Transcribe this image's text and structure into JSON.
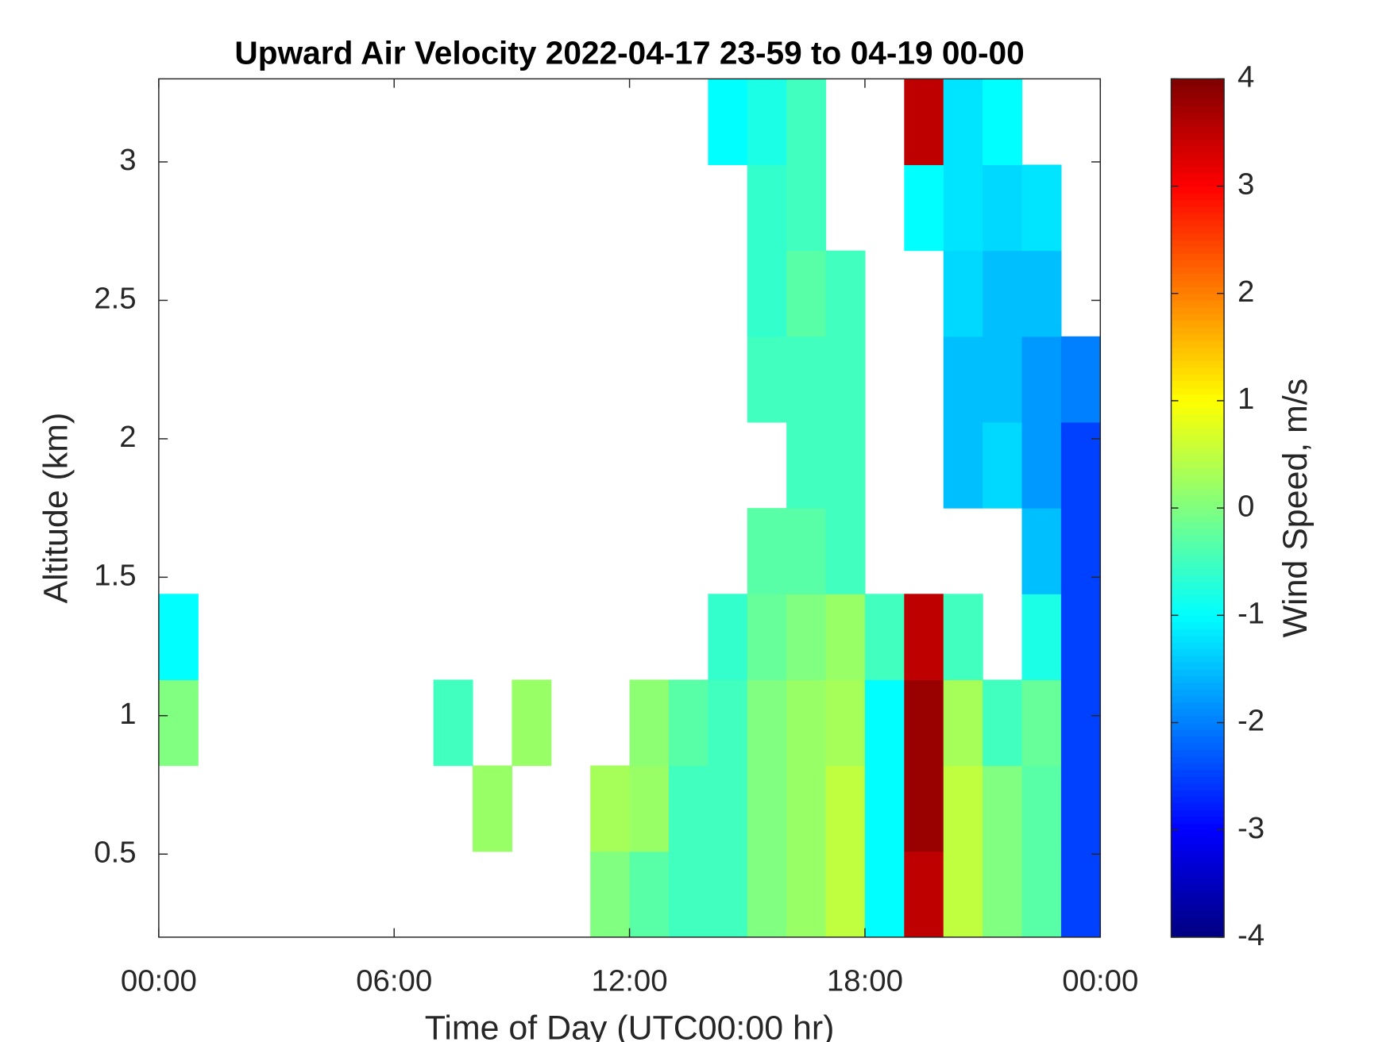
{
  "chart_data": {
    "type": "heatmap",
    "title": "Upward Air Velocity 2022-04-17 23-59 to 04-19 00-00",
    "x_label": "Time of Day (UTC00:00 hr)",
    "y_label": "Altitude (km)",
    "colorbar_label": "Wind Speed, m/s",
    "colormap": "jet",
    "clim": [
      -4,
      4
    ],
    "cticks": [
      -4,
      -3,
      -2,
      -1,
      0,
      1,
      2,
      3,
      4
    ],
    "xlim": [
      0,
      24
    ],
    "xticks": [
      {
        "value": 0,
        "label": "00:00"
      },
      {
        "value": 6,
        "label": "06:00"
      },
      {
        "value": 12,
        "label": "12:00"
      },
      {
        "value": 18,
        "label": "18:00"
      },
      {
        "value": 24,
        "label": "00:00"
      }
    ],
    "ylim": [
      0.2,
      3.3
    ],
    "yticks": [
      0.5,
      1,
      1.5,
      2,
      2.5,
      3
    ],
    "x_edges": [
      0,
      1,
      2,
      3,
      4,
      5,
      6,
      7,
      8,
      9,
      10,
      11,
      12,
      13,
      14,
      15,
      16,
      17,
      18,
      19,
      20,
      21,
      22,
      23,
      24
    ],
    "y_edges": [
      0.2,
      0.51,
      0.82,
      1.13,
      1.44,
      1.75,
      2.06,
      2.37,
      2.68,
      2.99,
      3.3
    ],
    "values": [
      [
        null,
        null,
        null,
        null,
        null,
        null,
        null,
        null,
        null,
        null,
        null,
        0,
        -0.3,
        -0.5,
        -0.5,
        0,
        0.2,
        0.5,
        -1,
        3.5,
        0.5,
        0,
        -0.3,
        -2.5
      ],
      [
        null,
        null,
        null,
        null,
        null,
        null,
        null,
        null,
        0.2,
        null,
        null,
        0.3,
        0.2,
        -0.5,
        -0.5,
        0,
        0.2,
        0.5,
        -1,
        3.8,
        0.5,
        0,
        -0.3,
        -2.5
      ],
      [
        0,
        null,
        null,
        null,
        null,
        null,
        null,
        -0.5,
        null,
        0.2,
        null,
        null,
        0.1,
        -0.3,
        -0.5,
        0,
        0.2,
        0.3,
        -1,
        3.8,
        0.3,
        -0.5,
        -0.2,
        -2.5
      ],
      [
        -1,
        null,
        null,
        null,
        null,
        null,
        null,
        null,
        null,
        null,
        null,
        null,
        null,
        null,
        -0.6,
        -0.2,
        0,
        0.2,
        -0.5,
        3.5,
        -0.5,
        null,
        -0.8,
        -2.5
      ],
      [
        null,
        null,
        null,
        null,
        null,
        null,
        null,
        null,
        null,
        null,
        null,
        null,
        null,
        null,
        null,
        -0.3,
        -0.3,
        -0.5,
        null,
        null,
        null,
        null,
        -1.5,
        -2.5
      ],
      [
        null,
        null,
        null,
        null,
        null,
        null,
        null,
        null,
        null,
        null,
        null,
        null,
        null,
        null,
        null,
        null,
        -0.5,
        -0.5,
        null,
        null,
        -1.5,
        -1.3,
        -1.8,
        -2.5
      ],
      [
        null,
        null,
        null,
        null,
        null,
        null,
        null,
        null,
        null,
        null,
        null,
        null,
        null,
        null,
        null,
        -0.5,
        -0.5,
        -0.5,
        null,
        null,
        -1.5,
        -1.5,
        -1.8,
        -2
      ],
      [
        null,
        null,
        null,
        null,
        null,
        null,
        null,
        null,
        null,
        null,
        null,
        null,
        null,
        null,
        null,
        -0.6,
        -0.3,
        -0.5,
        null,
        null,
        -1.3,
        -1.5,
        -1.5,
        null
      ],
      [
        null,
        null,
        null,
        null,
        null,
        null,
        null,
        null,
        null,
        null,
        null,
        null,
        null,
        null,
        null,
        -0.6,
        -0.5,
        null,
        null,
        -1,
        -1.2,
        -1.3,
        -1.2,
        null
      ],
      [
        null,
        null,
        null,
        null,
        null,
        null,
        null,
        null,
        null,
        null,
        null,
        null,
        null,
        null,
        -1,
        -0.8,
        -0.5,
        null,
        null,
        3.5,
        -1.2,
        -1,
        null,
        null
      ]
    ]
  }
}
